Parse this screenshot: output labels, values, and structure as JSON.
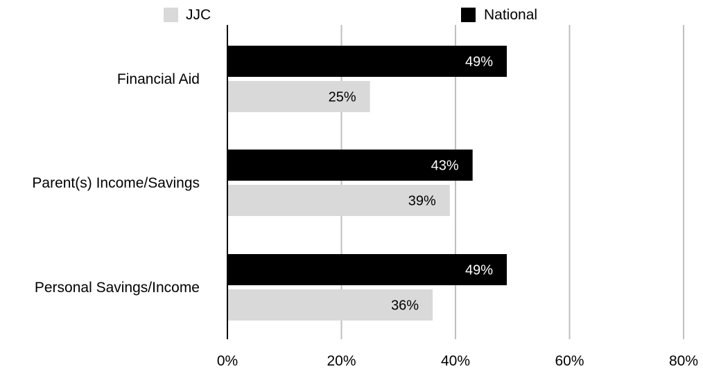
{
  "chart_data": {
    "type": "bar",
    "orientation": "horizontal",
    "categories": [
      "Financial Aid",
      "Parent(s) Income/Savings",
      "Personal Savings/Income"
    ],
    "series": [
      {
        "name": "National",
        "color": "#000000",
        "label_color": "#ffffff",
        "values": [
          49,
          43,
          49
        ],
        "labels": [
          "49%",
          "43%",
          "49%"
        ]
      },
      {
        "name": "JJC",
        "color": "#d9d9d9",
        "label_color": "#000000",
        "values": [
          25,
          39,
          36
        ],
        "labels": [
          "25%",
          "39%",
          "36%"
        ]
      }
    ],
    "xlim": [
      0,
      80
    ],
    "xticks": [
      0,
      20,
      40,
      60,
      80
    ],
    "xtick_labels": [
      "0%",
      "20%",
      "40%",
      "60%",
      "80%"
    ],
    "grid": true,
    "legend": {
      "position": "top",
      "order": [
        "JJC",
        "National"
      ]
    }
  }
}
